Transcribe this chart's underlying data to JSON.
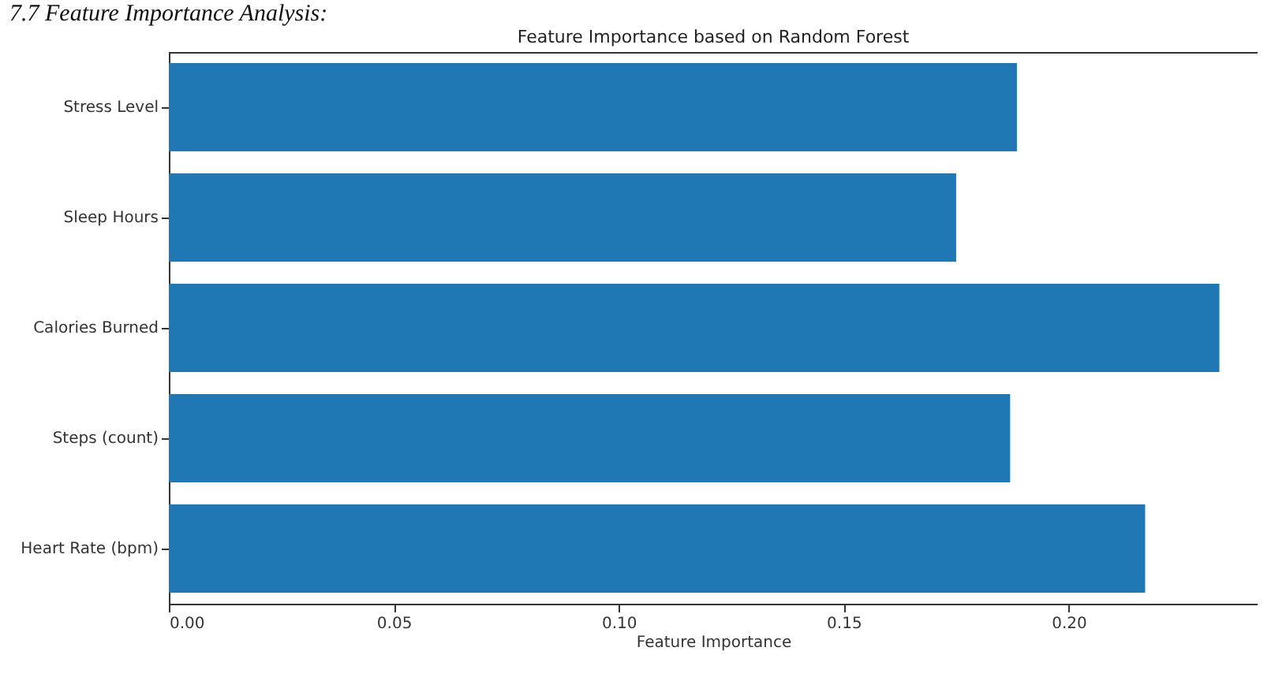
{
  "chart_data": {
    "type": "bar",
    "orientation": "horizontal",
    "title": "Feature Importance based on Random Forest",
    "xlabel": "Feature Importance",
    "annotations": [
      "7.7 Feature Importance Analysis:"
    ],
    "categories": [
      "Stress Level",
      "Sleep Hours",
      "Calories Burned",
      "Steps (count)",
      "Heart Rate (bpm)"
    ],
    "values": [
      0.1885,
      0.175,
      0.2335,
      0.187,
      0.217
    ],
    "color": "#1f77b4",
    "xlim": [
      0,
      0.242
    ],
    "xticks": [
      {
        "value": 0,
        "label": "0.00"
      },
      {
        "value": 0.05,
        "label": "0.05"
      },
      {
        "value": 0.1,
        "label": "0.10"
      },
      {
        "value": 0.15,
        "label": "0.15"
      },
      {
        "value": 0.2,
        "label": "0.20"
      }
    ],
    "grid": false
  }
}
